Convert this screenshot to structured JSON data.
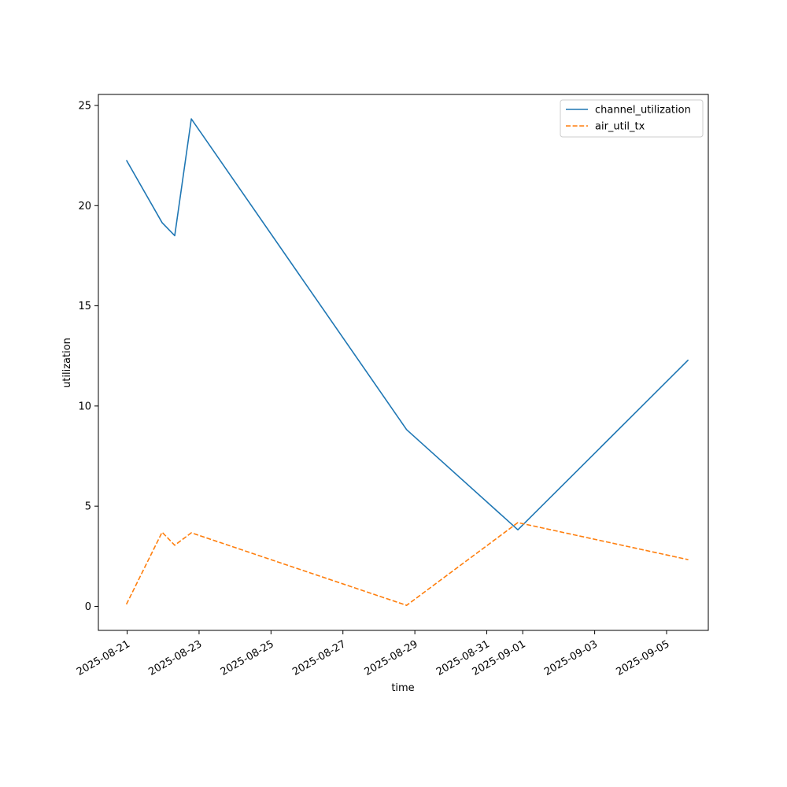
{
  "chart_data": {
    "type": "line",
    "title": "",
    "xlabel": "time",
    "ylabel": "utilization",
    "x_type": "datetime",
    "xlim": [
      "2025-08-20T04:48",
      "2025-09-06T03:50"
    ],
    "ylim": [
      -1.2,
      25.55
    ],
    "x_ticks": [
      "2025-08-21",
      "2025-08-23",
      "2025-08-25",
      "2025-08-27",
      "2025-08-29",
      "2025-08-31",
      "2025-09-01",
      "2025-09-03",
      "2025-09-05"
    ],
    "y_ticks": [
      0,
      5,
      10,
      15,
      20,
      25
    ],
    "grid": false,
    "legend_position": "upper right",
    "series": [
      {
        "name": "channel_utilization",
        "color": "#1f77b4",
        "style": "solid",
        "points": [
          {
            "x": "2025-08-20T23:30",
            "y": 22.27
          },
          {
            "x": "2025-08-21T23:20",
            "y": 19.15
          },
          {
            "x": "2025-08-22T07:45",
            "y": 18.5
          },
          {
            "x": "2025-08-22T18:50",
            "y": 24.33
          },
          {
            "x": "2025-08-28T18:30",
            "y": 8.82
          },
          {
            "x": "2025-08-31T20:45",
            "y": 3.82
          },
          {
            "x": "2025-09-05T14:30",
            "y": 12.3
          }
        ]
      },
      {
        "name": "air_util_tx",
        "color": "#ff7f0e",
        "style": "dashed",
        "points": [
          {
            "x": "2025-08-20T23:30",
            "y": 0.1
          },
          {
            "x": "2025-08-21T23:20",
            "y": 3.7
          },
          {
            "x": "2025-08-22T07:45",
            "y": 3.05
          },
          {
            "x": "2025-08-22T18:50",
            "y": 3.67
          },
          {
            "x": "2025-08-28T18:30",
            "y": 0.05
          },
          {
            "x": "2025-08-31T20:45",
            "y": 4.18
          },
          {
            "x": "2025-09-05T14:30",
            "y": 2.33
          }
        ]
      }
    ]
  }
}
